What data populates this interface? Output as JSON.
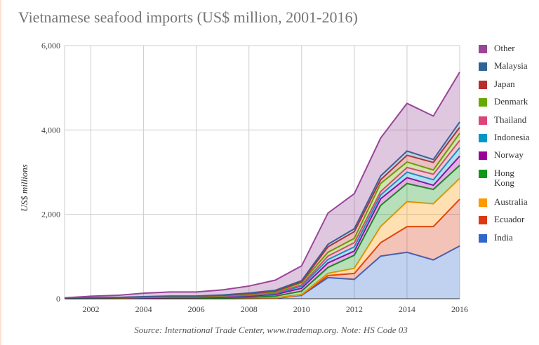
{
  "chart_data": {
    "type": "area",
    "stacked": true,
    "title": "Vietnamese seafood imports (US$ million, 2001-2016)",
    "ylabel": "US$ millions",
    "xlabel": "",
    "source": "Source: International Trade Center, www.trademap.org. Note: HS Code 03",
    "x": [
      2001,
      2002,
      2003,
      2004,
      2005,
      2006,
      2007,
      2008,
      2009,
      2010,
      2011,
      2012,
      2013,
      2014,
      2015,
      2016
    ],
    "xticks": [
      "2002",
      "2004",
      "2006",
      "2008",
      "2010",
      "2012",
      "2014",
      "2016"
    ],
    "yticks": [
      "0",
      "2,000",
      "4,000",
      "6,000"
    ],
    "ylim": [
      0,
      6000
    ],
    "grid": true,
    "legend": "right",
    "series": [
      {
        "name": "India",
        "color": "#3366cc",
        "values": [
          0,
          0,
          1,
          1,
          2,
          2,
          3,
          5,
          10,
          80,
          500,
          460,
          1010,
          1100,
          920,
          1250
        ]
      },
      {
        "name": "Ecuador",
        "color": "#dc3912",
        "values": [
          0,
          0,
          0,
          1,
          1,
          1,
          2,
          3,
          5,
          10,
          50,
          140,
          320,
          610,
          790,
          1110
        ]
      },
      {
        "name": "Australia",
        "color": "#ff9900",
        "values": [
          0,
          0,
          0,
          1,
          1,
          1,
          2,
          3,
          5,
          10,
          50,
          120,
          380,
          590,
          540,
          490
        ]
      },
      {
        "name": "Hong Kong",
        "color": "#109618",
        "values": [
          1,
          4,
          5,
          8,
          10,
          10,
          15,
          25,
          40,
          80,
          140,
          310,
          500,
          430,
          340,
          310
        ]
      },
      {
        "name": "Norway",
        "color": "#990099",
        "values": [
          2,
          6,
          8,
          12,
          15,
          15,
          20,
          30,
          40,
          70,
          110,
          100,
          160,
          140,
          100,
          220
        ]
      },
      {
        "name": "Indonesia",
        "color": "#0099c6",
        "values": [
          1,
          3,
          4,
          6,
          8,
          8,
          10,
          15,
          20,
          50,
          80,
          100,
          90,
          130,
          130,
          200
        ]
      },
      {
        "name": "Thailand",
        "color": "#dd4477",
        "values": [
          1,
          2,
          3,
          4,
          5,
          5,
          8,
          10,
          15,
          30,
          80,
          100,
          80,
          110,
          130,
          170
        ]
      },
      {
        "name": "Denmark",
        "color": "#66aa00",
        "values": [
          1,
          3,
          4,
          6,
          8,
          8,
          10,
          15,
          25,
          50,
          90,
          100,
          190,
          130,
          100,
          170
        ]
      },
      {
        "name": "Japan",
        "color": "#b82e2e",
        "values": [
          1,
          3,
          4,
          6,
          8,
          8,
          10,
          15,
          20,
          20,
          130,
          160,
          90,
          160,
          180,
          140
        ]
      },
      {
        "name": "Malaysia",
        "color": "#316395",
        "values": [
          1,
          3,
          3,
          5,
          7,
          7,
          10,
          15,
          20,
          30,
          60,
          70,
          90,
          100,
          70,
          130
        ]
      },
      {
        "name": "Other",
        "color": "#994499",
        "values": [
          12,
          36,
          48,
          80,
          95,
          95,
          120,
          164,
          240,
          350,
          740,
          830,
          900,
          1130,
          1030,
          1180
        ]
      }
    ]
  }
}
